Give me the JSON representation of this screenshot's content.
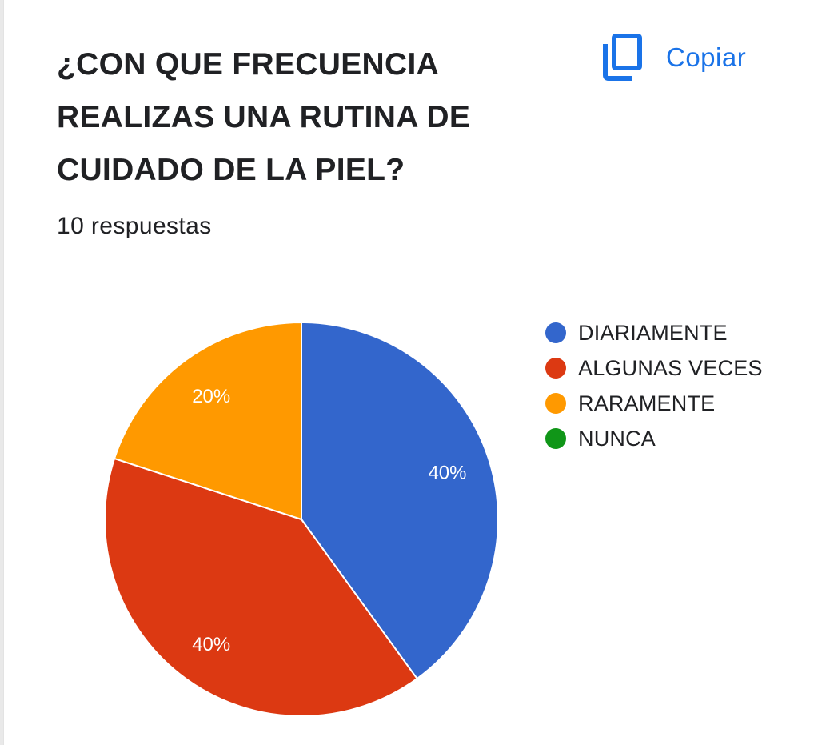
{
  "header": {
    "title": "¿CON QUE FRECUENCIA REALIZAS UNA RUTINA DE CUIDADO DE LA PIEL?",
    "copy_label": "Copiar",
    "copy_icon": "copy-icon",
    "responses": "10 respuestas"
  },
  "colors": {
    "accent": "#1a73e8",
    "slice_border": "#ffffff"
  },
  "chart_data": {
    "type": "pie",
    "title": "¿CON QUE FRECUENCIA REALIZAS UNA RUTINA DE CUIDADO DE LA PIEL?",
    "total_responses": 10,
    "legend_position": "right",
    "slices": [
      {
        "label": "DIARIAMENTE",
        "value": 40,
        "display": "40%",
        "color": "#3366cc"
      },
      {
        "label": "ALGUNAS VECES",
        "value": 40,
        "display": "40%",
        "color": "#dc3912"
      },
      {
        "label": "RARAMENTE",
        "value": 20,
        "display": "20%",
        "color": "#ff9900"
      },
      {
        "label": "NUNCA",
        "value": 0,
        "display": "",
        "color": "#109618"
      }
    ]
  }
}
